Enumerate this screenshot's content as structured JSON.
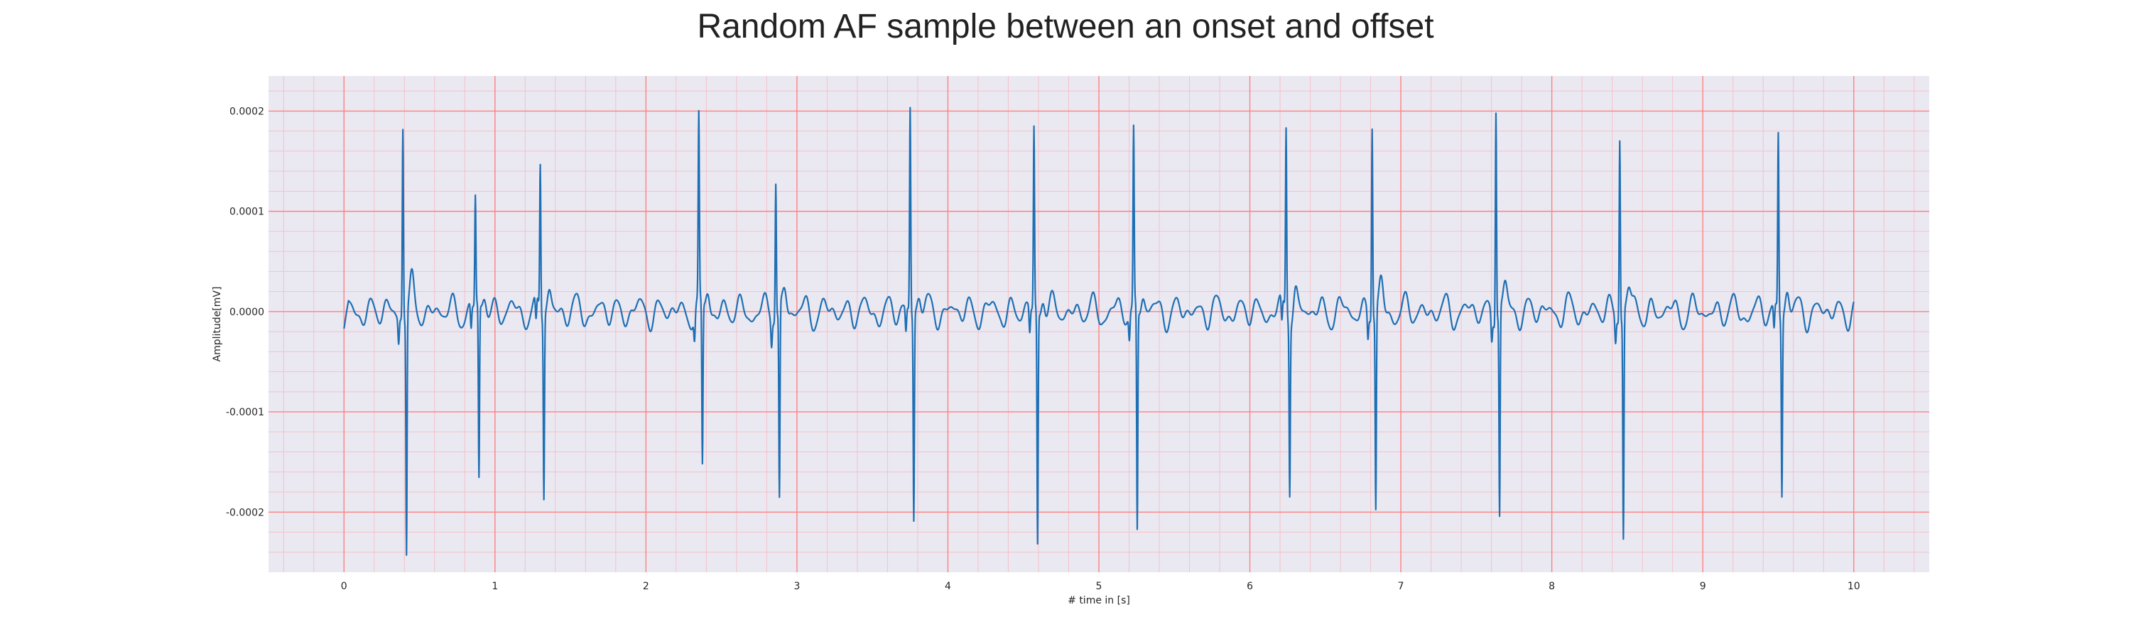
{
  "chart_data": {
    "type": "line",
    "title": "Random AF sample between an onset and offset",
    "xlabel": "# time in [s]",
    "ylabel": "Amplitude[mV]",
    "xlim": [
      -0.5,
      10.5
    ],
    "ylim": [
      -0.00026,
      0.000235
    ],
    "x_ticks": [
      0,
      1,
      2,
      3,
      4,
      5,
      6,
      7,
      8,
      9,
      10
    ],
    "x_tick_labels": [
      "0",
      "1",
      "2",
      "3",
      "4",
      "5",
      "6",
      "7",
      "8",
      "9",
      "10"
    ],
    "y_ticks": [
      -0.0002,
      -0.0001,
      0.0,
      0.0001,
      0.0002
    ],
    "y_tick_labels": [
      "-0.0002",
      "-0.0001",
      "0.0000",
      "0.0001",
      "0.0002"
    ],
    "grid": "on",
    "grid_major_color": "#ff8080",
    "grid_minor_color": "#f5c0c8",
    "plot_background": "#eae9f2",
    "series": [
      {
        "color": "#1f6fb4",
        "beats": [
          {
            "t": 0.39,
            "r": 0.000191,
            "s": -0.000238
          },
          {
            "t": 0.87,
            "r": 0.00011,
            "s": -0.000174
          },
          {
            "t": 1.3,
            "r": 0.000148,
            "s": -0.00018
          },
          {
            "t": 2.35,
            "r": 0.000182,
            "s": -0.000161
          },
          {
            "t": 2.86,
            "r": 0.000137,
            "s": -0.000191
          },
          {
            "t": 3.75,
            "r": 0.000205,
            "s": -0.000205
          },
          {
            "t": 4.57,
            "r": 0.00018,
            "s": -0.000231
          },
          {
            "t": 5.23,
            "r": 0.000175,
            "s": -0.000222
          },
          {
            "t": 6.24,
            "r": 0.000183,
            "s": -0.000169
          },
          {
            "t": 6.81,
            "r": 0.000193,
            "s": -0.000196
          },
          {
            "t": 7.63,
            "r": 0.000213,
            "s": -0.000206
          },
          {
            "t": 8.45,
            "r": 0.000184,
            "s": -0.000224
          },
          {
            "t": 9.5,
            "r": 0.000178,
            "s": -0.000176
          }
        ]
      }
    ]
  }
}
